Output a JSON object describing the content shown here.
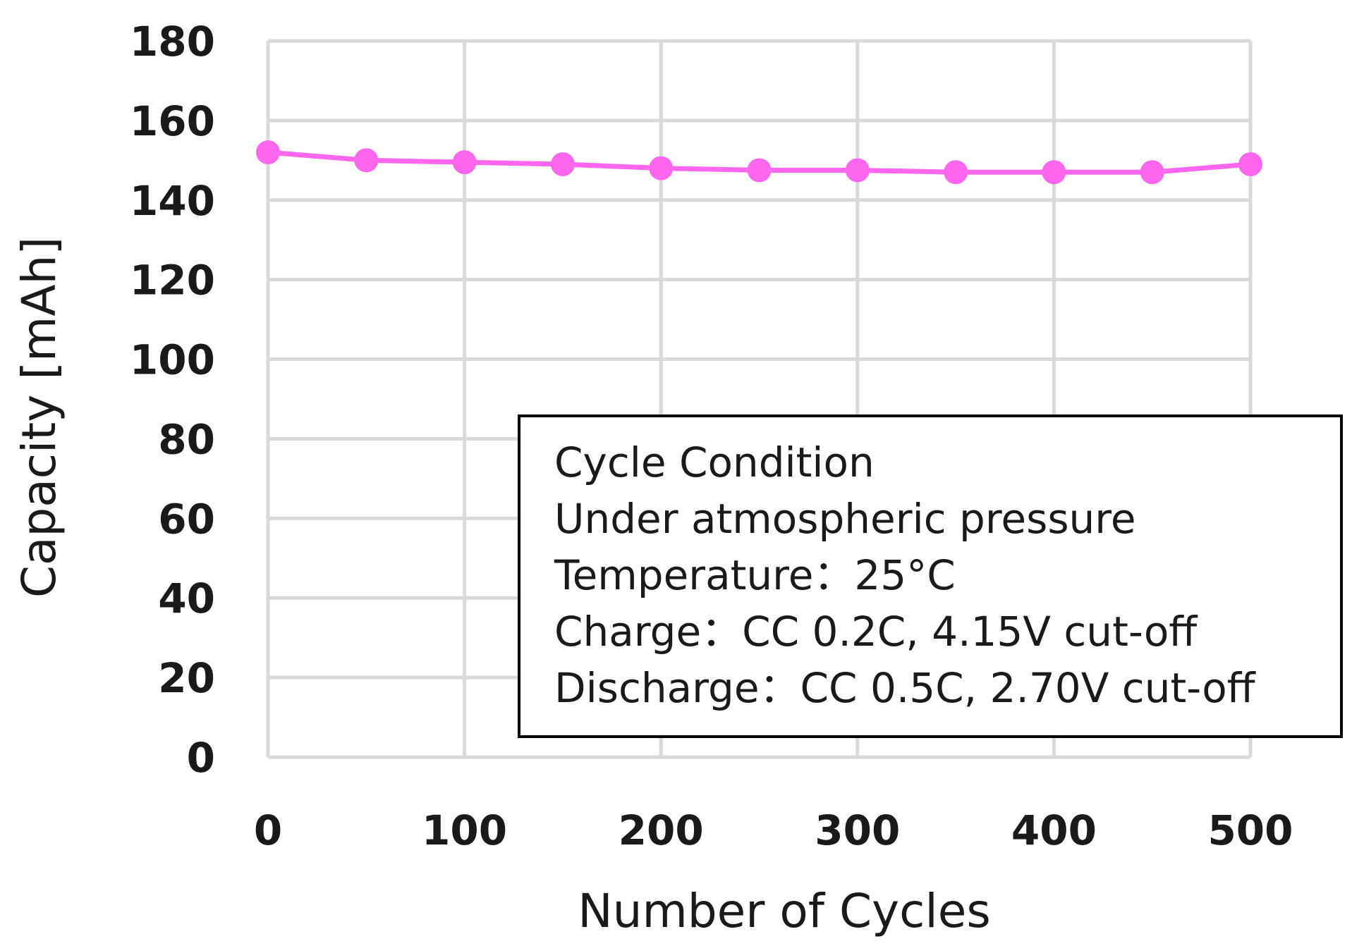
{
  "chart_data": {
    "type": "line",
    "title": "",
    "xlabel": "Number of Cycles",
    "ylabel": "Capacity [mAh]",
    "xlim": [
      0,
      500
    ],
    "ylim": [
      0,
      180
    ],
    "x_ticks": [
      0,
      100,
      200,
      300,
      400,
      500
    ],
    "y_ticks": [
      0,
      20,
      40,
      60,
      80,
      100,
      120,
      140,
      160,
      180
    ],
    "grid": true,
    "series": [
      {
        "name": "Capacity",
        "color": "#ff66ee",
        "x": [
          0,
          50,
          100,
          150,
          200,
          250,
          300,
          350,
          400,
          450,
          500
        ],
        "values": [
          152,
          150,
          149.5,
          149,
          148,
          147.5,
          147.5,
          147,
          147,
          147,
          149
        ]
      }
    ],
    "annotation": {
      "lines": [
        "Cycle Condition",
        "Under atmospheric pressure",
        "Temperature：25°C",
        "Charge：CC 0.2C, 4.15V cut-off",
        "Discharge：CC 0.5C, 2.70V cut-off"
      ]
    }
  }
}
